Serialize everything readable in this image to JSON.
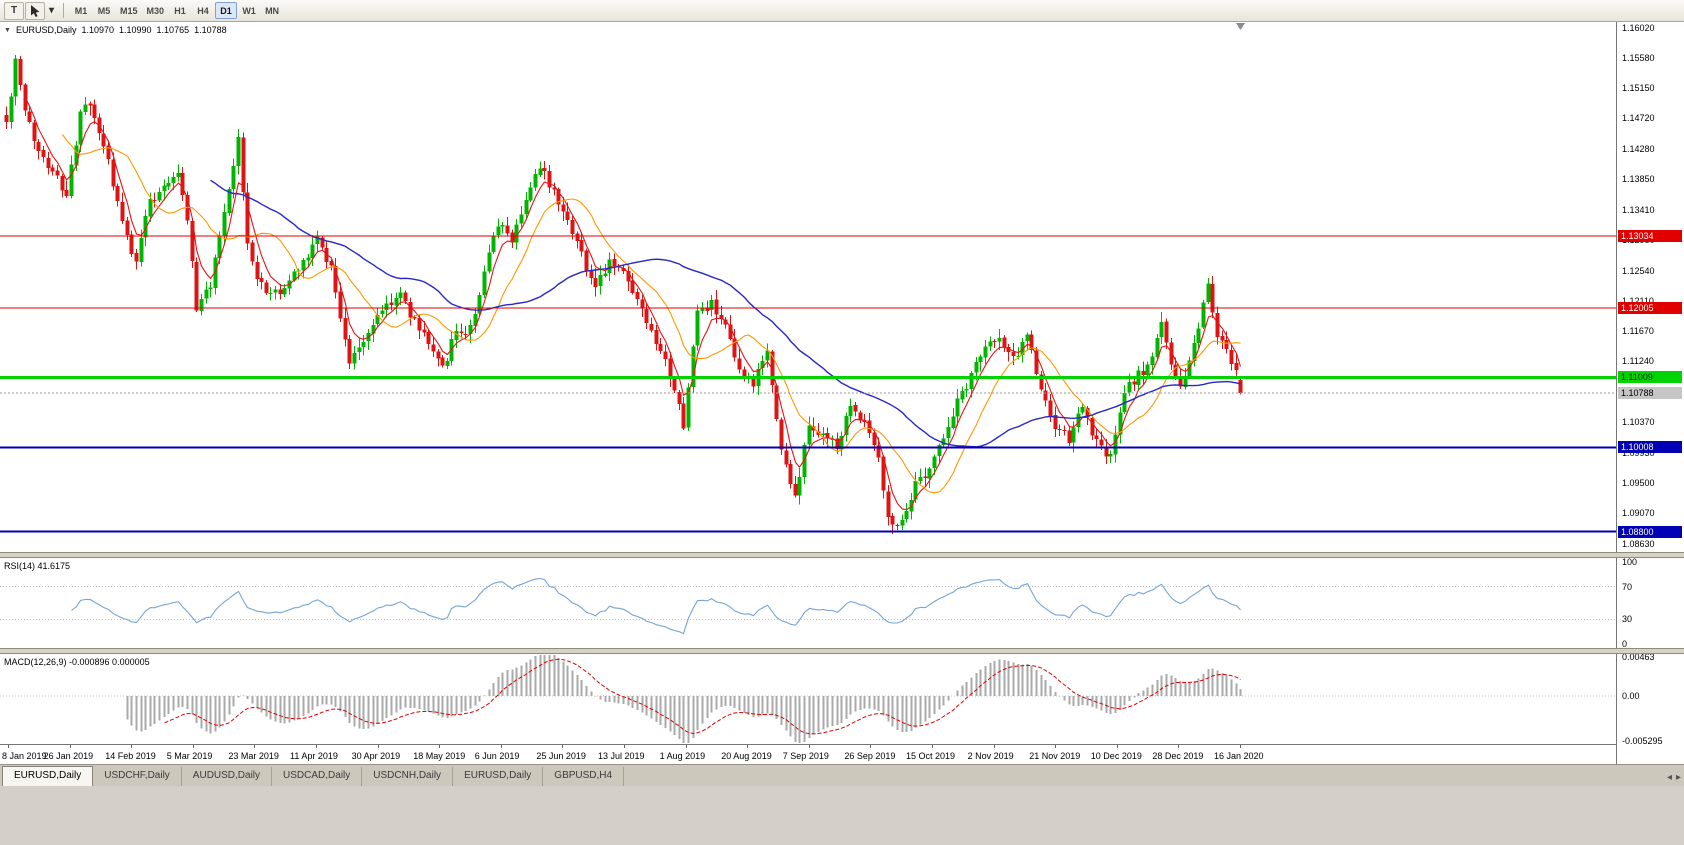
{
  "toolbar": {
    "tool_t_label": "T",
    "timeframes": [
      "M1",
      "M5",
      "M15",
      "M30",
      "H1",
      "H4",
      "D1",
      "W1",
      "MN"
    ],
    "active_timeframe": "D1"
  },
  "chart": {
    "title": "EURUSD,Daily",
    "ohlc": {
      "open": "1.10970",
      "high": "1.10990",
      "low": "1.10765",
      "close": "1.10788"
    },
    "current_price": "1.10788",
    "price_scale_labels": [
      "1.16020",
      "1.15580",
      "1.15150",
      "1.14720",
      "1.14280",
      "1.13850",
      "1.13410",
      "1.12980",
      "1.12540",
      "1.12110",
      "1.11670",
      "1.11240",
      "1.10800",
      "1.10370",
      "1.09930",
      "1.09500",
      "1.09070",
      "1.08630"
    ],
    "levels": [
      {
        "price": 1.13034,
        "label": "1.13034",
        "color": "#e00000",
        "width": 1,
        "text_color": "#ffffff"
      },
      {
        "price": 1.12005,
        "label": "1.12005",
        "color": "#e00000",
        "width": 1,
        "text_color": "#ffffff"
      },
      {
        "price": 1.11009,
        "label": "1.11009",
        "color": "#00d400",
        "width": 3,
        "text_color": "#003300"
      },
      {
        "price": 1.10008,
        "label": "1.10008",
        "color": "#0000b4",
        "width": 2,
        "text_color": "#ffffff"
      },
      {
        "price": 1.088,
        "label": "1.08800",
        "color": "#0000b4",
        "width": 2,
        "text_color": "#ffffff"
      }
    ],
    "date_labels": [
      "8 Jan 2019",
      "26 Jan 2019",
      "14 Feb 2019",
      "5 Mar 2019",
      "23 Mar 2019",
      "11 Apr 2019",
      "30 Apr 2019",
      "18 May 2019",
      "6 Jun 2019",
      "25 Jun 2019",
      "13 Jul 2019",
      "1 Aug 2019",
      "20 Aug 2019",
      "7 Sep 2019",
      "26 Sep 2019",
      "15 Oct 2019",
      "2 Nov 2019",
      "21 Nov 2019",
      "10 Dec 2019",
      "28 Dec 2019",
      "16 Jan 2020"
    ]
  },
  "indicators": {
    "rsi": {
      "label": "RSI(14) 41.6175",
      "value": 41.6175,
      "scale": [
        "100",
        "70",
        "30",
        "0"
      ],
      "guide_levels": [
        70,
        30
      ],
      "line_color": "#76a5d2"
    },
    "macd": {
      "label": "MACD(12,26,9) -0.000896 0.000005",
      "macd_value": -0.000896,
      "signal_value": 5e-06,
      "scale": [
        "0.00463",
        "0.00",
        "-0.005295"
      ],
      "histogram_color": "#aaaaaa",
      "signal_color": "#e00000"
    }
  },
  "chart_data": {
    "type": "candlestick-ohlc",
    "symbol": "EURUSD",
    "timeframe": "Daily",
    "bars": 267,
    "price_range": {
      "top": 1.161,
      "bottom": 1.085088
    },
    "last_bar_ohlc": {
      "open": 1.1097,
      "high": 1.1099,
      "low": 1.10765,
      "close": 1.10788
    },
    "up_color": "#00b400",
    "down_color": "#dc1414",
    "current_price_line_color": "#9a9a9a",
    "moving_averages": [
      {
        "name": "fast-red",
        "type": "ema",
        "period": 5,
        "color": "#e81414",
        "width": 1.1
      },
      {
        "name": "mid-orange",
        "type": "sma",
        "period": 13,
        "color": "#ff9800",
        "width": 1.1
      },
      {
        "name": "slow-blue",
        "type": "sma",
        "period": 45,
        "color": "#2828c8",
        "width": 1.4
      }
    ],
    "price_path_anchors": [
      [
        0,
        1.1465
      ],
      [
        2,
        1.1552
      ],
      [
        4,
        1.148
      ],
      [
        7,
        1.1425
      ],
      [
        10,
        1.14
      ],
      [
        13,
        1.1358
      ],
      [
        16,
        1.148
      ],
      [
        18,
        1.149
      ],
      [
        21,
        1.1435
      ],
      [
        25,
        1.132
      ],
      [
        28,
        1.1265
      ],
      [
        30,
        1.134
      ],
      [
        34,
        1.138
      ],
      [
        37,
        1.1395
      ],
      [
        39,
        1.133
      ],
      [
        41,
        1.12
      ],
      [
        44,
        1.1235
      ],
      [
        47,
        1.133
      ],
      [
        50,
        1.144
      ],
      [
        52,
        1.129
      ],
      [
        55,
        1.123
      ],
      [
        59,
        1.122
      ],
      [
        63,
        1.126
      ],
      [
        67,
        1.13
      ],
      [
        70,
        1.126
      ],
      [
        74,
        1.112
      ],
      [
        77,
        1.1155
      ],
      [
        81,
        1.12
      ],
      [
        85,
        1.122
      ],
      [
        88,
        1.118
      ],
      [
        91,
        1.1155
      ],
      [
        94,
        1.1115
      ],
      [
        97,
        1.1165
      ],
      [
        100,
        1.117
      ],
      [
        103,
        1.125
      ],
      [
        106,
        1.132
      ],
      [
        109,
        1.13
      ],
      [
        112,
        1.136
      ],
      [
        115,
        1.14
      ],
      [
        118,
        1.137
      ],
      [
        121,
        1.133
      ],
      [
        124,
        1.128
      ],
      [
        127,
        1.1225
      ],
      [
        130,
        1.127
      ],
      [
        133,
        1.125
      ],
      [
        136,
        1.121
      ],
      [
        139,
        1.116
      ],
      [
        142,
        1.112
      ],
      [
        146,
        1.1035
      ],
      [
        149,
        1.1195
      ],
      [
        152,
        1.1205
      ],
      [
        155,
        1.117
      ],
      [
        158,
        1.1105
      ],
      [
        161,
        1.109
      ],
      [
        164,
        1.114
      ],
      [
        167,
        1.0995
      ],
      [
        170,
        1.093
      ],
      [
        173,
        1.103
      ],
      [
        176,
        1.102
      ],
      [
        179,
        1.1
      ],
      [
        182,
        1.106
      ],
      [
        185,
        1.104
      ],
      [
        188,
        1.099
      ],
      [
        190,
        1.09
      ],
      [
        192,
        1.089
      ],
      [
        196,
        1.0945
      ],
      [
        200,
        1.0985
      ],
      [
        204,
        1.105
      ],
      [
        208,
        1.1105
      ],
      [
        211,
        1.115
      ],
      [
        214,
        1.1155
      ],
      [
        217,
        1.1125
      ],
      [
        220,
        1.1165
      ],
      [
        223,
        1.108
      ],
      [
        226,
        1.103
      ],
      [
        229,
        1.101
      ],
      [
        232,
        1.106
      ],
      [
        235,
        1.1005
      ],
      [
        238,
        1.0985
      ],
      [
        241,
        1.108
      ],
      [
        244,
        1.1105
      ],
      [
        247,
        1.1125
      ],
      [
        249,
        1.1185
      ],
      [
        251,
        1.112
      ],
      [
        253,
        1.1085
      ],
      [
        255,
        1.1125
      ],
      [
        257,
        1.1175
      ],
      [
        259,
        1.123
      ],
      [
        261,
        1.1165
      ],
      [
        263,
        1.1135
      ],
      [
        265,
        1.1115
      ],
      [
        266,
        1.10788
      ]
    ]
  },
  "tabs": {
    "items": [
      "EURUSD,Daily",
      "USDCHF,Daily",
      "AUDUSD,Daily",
      "USDCAD,Daily",
      "USDCNH,Daily",
      "EURUSD,Daily",
      "GBPUSD,H4"
    ],
    "active_index": 0
  }
}
